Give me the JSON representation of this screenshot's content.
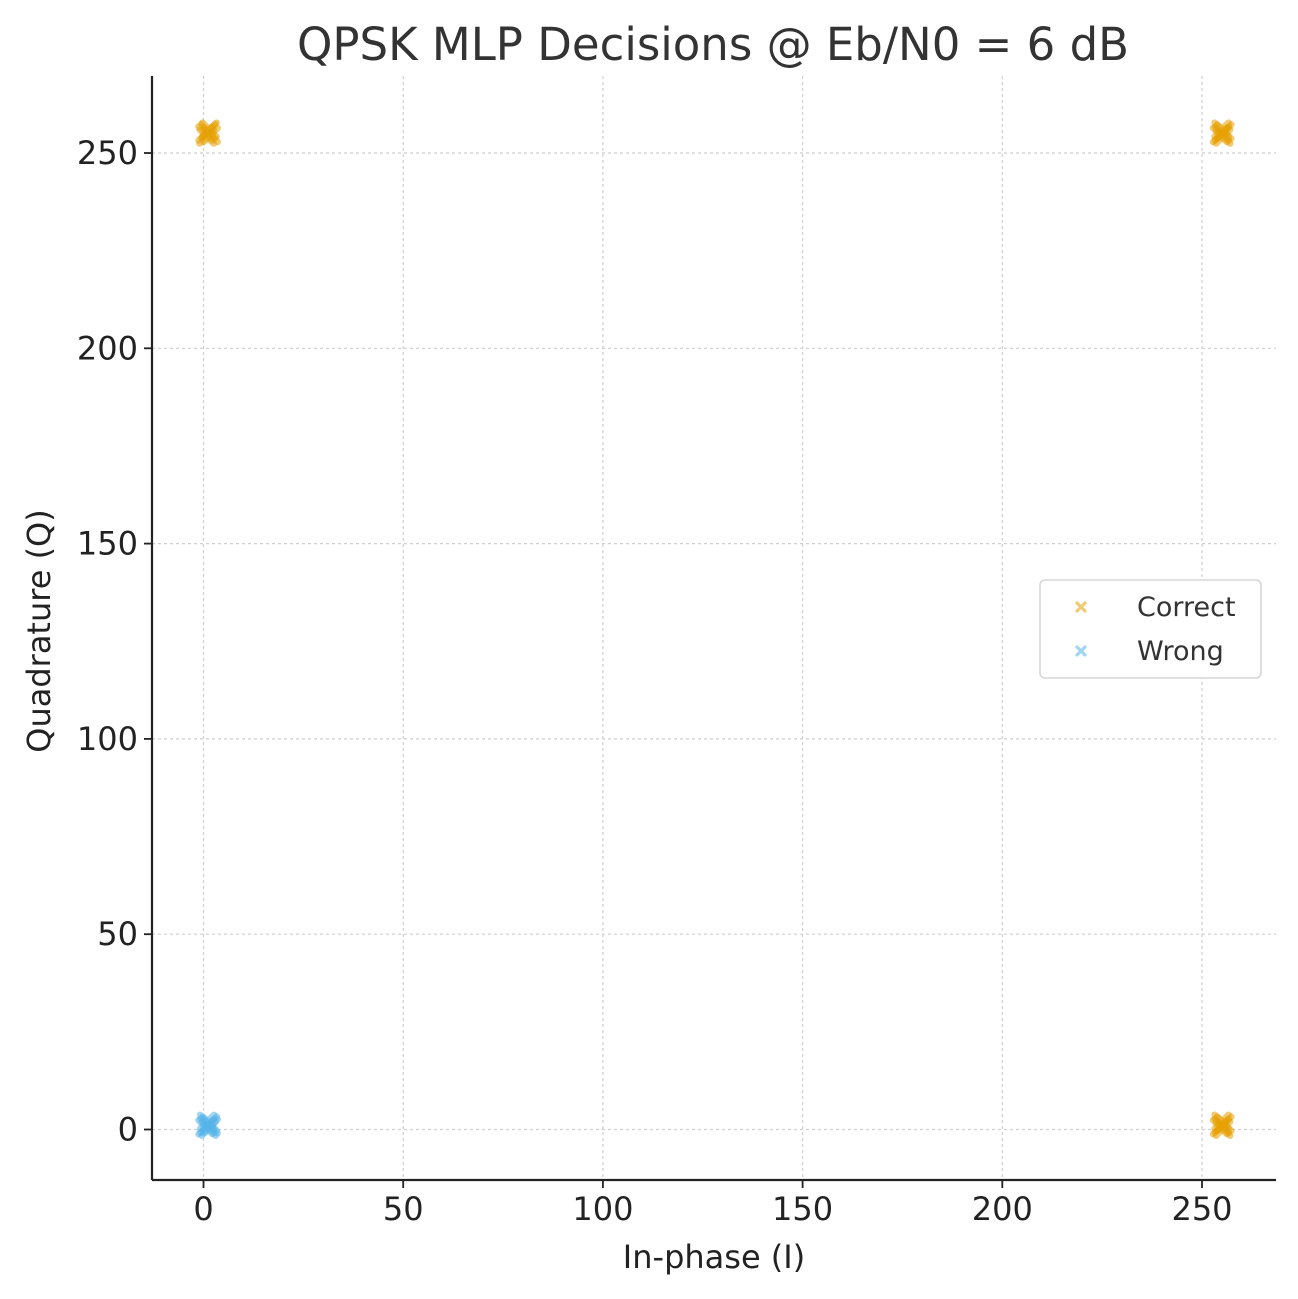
{
  "chart_data": {
    "type": "scatter",
    "title": "QPSK MLP Decisions @ Eb/N0 = 6 dB",
    "xlabel": "In-phase (I)",
    "ylabel": "Quadrature (Q)",
    "xlim": [
      -12.5,
      269
    ],
    "ylim": [
      -13,
      270
    ],
    "xticks": [
      0,
      50,
      100,
      150,
      200,
      250
    ],
    "yticks": [
      0,
      50,
      100,
      150,
      200,
      250
    ],
    "grid": true,
    "legend_position": "center-right",
    "series": [
      {
        "name": "Correct",
        "marker": "x",
        "color": "#E69F00",
        "points": [
          [
            0.5,
            255
          ],
          [
            1.2,
            255.6
          ],
          [
            1.8,
            254.6
          ],
          [
            0.8,
            254.2
          ],
          [
            1.5,
            256
          ],
          [
            255,
            255
          ],
          [
            255.6,
            255.5
          ],
          [
            254.5,
            254.6
          ],
          [
            255.3,
            254.2
          ],
          [
            254.9,
            256
          ],
          [
            255,
            1
          ],
          [
            255.6,
            1.5
          ],
          [
            254.5,
            0.6
          ],
          [
            255.3,
            0.2
          ],
          [
            254.9,
            2
          ]
        ]
      },
      {
        "name": "Wrong",
        "marker": "x",
        "color": "#56B4E9",
        "points": [
          [
            1,
            1
          ],
          [
            1.6,
            1.5
          ],
          [
            0.5,
            0.6
          ],
          [
            1.3,
            0.2
          ],
          [
            0.9,
            2
          ],
          [
            1.8,
            0.8
          ]
        ]
      }
    ]
  }
}
